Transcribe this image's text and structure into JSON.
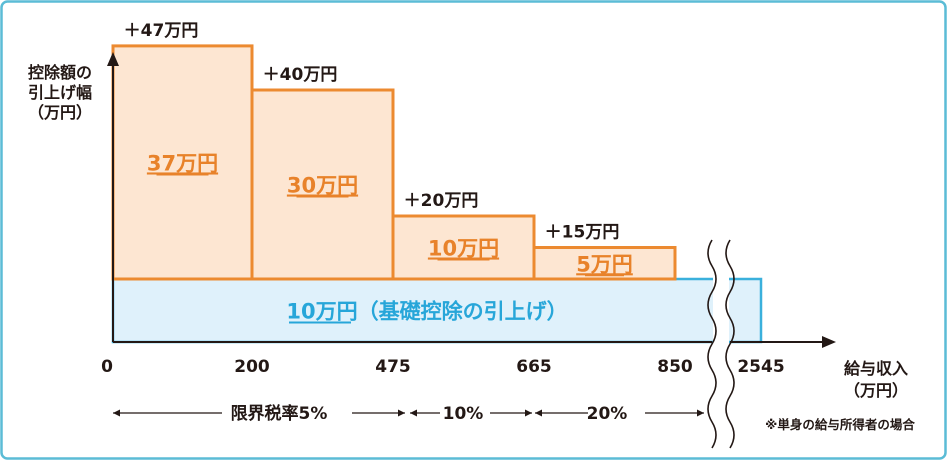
{
  "chart_data": {
    "type": "bar",
    "ylabel_lines": [
      "控除額の",
      "引上げ幅",
      "（万円）"
    ],
    "xlabel_lines": [
      "給与収入",
      "（万円）"
    ],
    "x_ticks": [
      "0",
      "200",
      "475",
      "665",
      "850",
      "2545"
    ],
    "base": {
      "value": 10,
      "label": "10万円",
      "note": "（基礎控除の引上げ）",
      "x_start": 0,
      "x_end": 2545
    },
    "steps": [
      {
        "x_start": 0,
        "x_end": 200,
        "value": 37,
        "label": "37万円",
        "total_label": "＋47万円"
      },
      {
        "x_start": 200,
        "x_end": 475,
        "value": 30,
        "label": "30万円",
        "total_label": "＋40万円"
      },
      {
        "x_start": 475,
        "x_end": 665,
        "value": 10,
        "label": "10万円",
        "total_label": "＋20万円"
      },
      {
        "x_start": 665,
        "x_end": 850,
        "value": 5,
        "label": "5万円",
        "total_label": "＋15万円"
      }
    ],
    "axis_break_after": "850",
    "rate_bands": [
      {
        "label": "限界税率5%",
        "from": "0",
        "to": "475"
      },
      {
        "label": "10%",
        "from": "475",
        "to": "665"
      },
      {
        "label": "20%",
        "from": "665",
        "to": "850"
      }
    ],
    "footnote": "※単身の給与所得者の場合",
    "colors": {
      "border": "#5bbcd6",
      "step_fill": "#fde6d2",
      "step_stroke": "#ec8a30",
      "step_label": "#e8822a",
      "base_fill": "#dff1fb",
      "base_stroke": "#3ab0dc",
      "base_label": "#27a6d9",
      "text": "#231815"
    }
  }
}
